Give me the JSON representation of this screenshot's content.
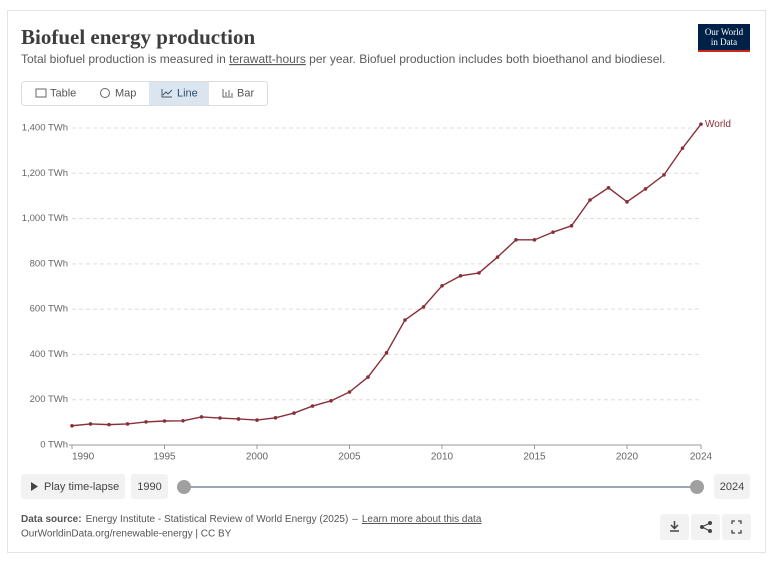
{
  "chart_data": {
    "type": "line",
    "title": "Biofuel energy production",
    "subtitle": [
      "Total biofuel production is measured in ",
      "terawatt-hours",
      " per year. Biofuel production includes both bioethanol and biodiesel."
    ],
    "x": [
      1990,
      1991,
      1992,
      1993,
      1994,
      1995,
      1996,
      1997,
      1998,
      1999,
      2000,
      2001,
      2002,
      2003,
      2004,
      2005,
      2006,
      2007,
      2008,
      2009,
      2010,
      2011,
      2012,
      2013,
      2014,
      2015,
      2016,
      2017,
      2018,
      2019,
      2020,
      2021,
      2022,
      2023,
      2024
    ],
    "series": [
      {
        "name": "World",
        "color": "#883039",
        "values": [
          85,
          93,
          90,
          93,
          102,
          106,
          107,
          124,
          119,
          115,
          110,
          120,
          141,
          172,
          195,
          234,
          300,
          407,
          552,
          610,
          703,
          747,
          760,
          830,
          906,
          906,
          940,
          968,
          1082,
          1136,
          1074,
          1131,
          1193,
          1311,
          1417
        ]
      }
    ],
    "xlim": [
      1990,
      2024
    ],
    "xticks": [
      1990,
      1995,
      2000,
      2005,
      2010,
      2015,
      2020,
      2024
    ],
    "ylim": [
      0,
      1400
    ],
    "yticks": [
      {
        "value": 0,
        "label": "0 TWh"
      },
      {
        "value": 200,
        "label": "200 TWh"
      },
      {
        "value": 400,
        "label": "400 TWh"
      },
      {
        "value": 600,
        "label": "600 TWh"
      },
      {
        "value": 800,
        "label": "800 TWh"
      },
      {
        "value": 1000,
        "label": "1,000 TWh"
      },
      {
        "value": 1200,
        "label": "1,200 TWh"
      },
      {
        "value": 1400,
        "label": "1,400 TWh"
      }
    ],
    "grid": true
  },
  "logo": [
    "Our World",
    "in Data"
  ],
  "tabs": [
    "Table",
    "Map",
    "Line",
    "Bar"
  ],
  "timeline": {
    "play": "Play time-lapse",
    "start": "1990",
    "end": "2024"
  },
  "footer": {
    "source_label": "Data source:",
    "source": "Energy Institute - Statistical Review of World Energy (2025)",
    "separator": "–",
    "learn_more": "Learn more about this data",
    "url": "OurWorldinData.org/renewable-energy | CC BY"
  }
}
